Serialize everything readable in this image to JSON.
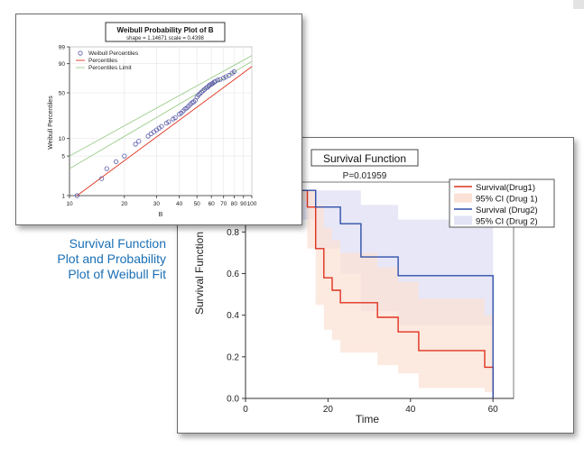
{
  "caption": {
    "line1": "Survival Function",
    "line2": "Plot and Probability",
    "line3": "Plot of Weibull Fit"
  },
  "colors": {
    "caption": "#1a6fb5",
    "drug1": "#e0321e",
    "drug1_ci": "#fbe2d6",
    "drug2": "#2f4fa8",
    "drug2_ci": "#e3e3f6",
    "weibull_points": "#5a5aa8",
    "percentiles": "#e0321e",
    "percentiles_limit": "#9ccc8a"
  },
  "chart_data": [
    {
      "type": "line",
      "title": "Survival Function",
      "subtitle": "P=0.01959",
      "xlabel": "Time",
      "ylabel": "Survival Function",
      "xlim": [
        0,
        65
      ],
      "ylim": [
        0,
        1.04
      ],
      "xticks": [
        "0",
        "20",
        "40",
        "60"
      ],
      "xtick_values": [
        0,
        20,
        40,
        60
      ],
      "yticks": [
        "0.0",
        "0.2",
        "0.4",
        "0.6",
        "0.8"
      ],
      "ytick_values": [
        0,
        0.2,
        0.4,
        0.6,
        0.8
      ],
      "legend": [
        "Survival(Drug1)",
        "95% CI (Drug 1)",
        "Survival (Drug2)",
        "95% CI (Drug 2)"
      ],
      "legend_position": "top-right",
      "series": [
        {
          "name": "Survival(Drug1)",
          "kind": "step",
          "x": [
            13,
            15,
            17,
            19,
            21,
            23,
            32,
            37,
            42,
            58,
            60
          ],
          "y": [
            1.0,
            0.92,
            0.72,
            0.58,
            0.52,
            0.46,
            0.39,
            0.32,
            0.23,
            0.15,
            0.0
          ]
        },
        {
          "name": "95% CI (Drug 1)",
          "kind": "band",
          "x": [
            13,
            15,
            17,
            19,
            21,
            23,
            32,
            37,
            42,
            58,
            60
          ],
          "lower": [
            0.95,
            0.72,
            0.45,
            0.33,
            0.28,
            0.22,
            0.16,
            0.12,
            0.05,
            0.03,
            0.0
          ],
          "upper": [
            1.0,
            1.0,
            0.93,
            0.82,
            0.76,
            0.7,
            0.63,
            0.56,
            0.48,
            0.4,
            0.4
          ]
        },
        {
          "name": "Survival (Drug2)",
          "kind": "step",
          "x": [
            13,
            17,
            23,
            28,
            37,
            60
          ],
          "y": [
            1.0,
            0.92,
            0.84,
            0.68,
            0.59,
            0.0
          ]
        },
        {
          "name": "95% CI (Drug 2)",
          "kind": "band",
          "x": [
            13,
            17,
            23,
            28,
            37,
            60
          ],
          "lower": [
            0.86,
            0.72,
            0.6,
            0.42,
            0.35,
            0.35
          ],
          "upper": [
            1.0,
            1.0,
            1.0,
            0.93,
            0.86,
            0.86
          ]
        }
      ]
    },
    {
      "type": "scatter",
      "title": "Weibull Probability Plot of B",
      "subtitle": "shape = 1.14671  scale = 0.4398",
      "xlabel": "B",
      "ylabel": "Weibull Percentiles",
      "x_scale": "log",
      "y_scale": "weibull",
      "xlim": [
        10,
        100
      ],
      "ylim": [
        1,
        99
      ],
      "xticks": [
        "10",
        "20",
        "30",
        "40",
        "50",
        "60",
        "70",
        "80",
        "90",
        "100"
      ],
      "xtick_values": [
        10,
        20,
        30,
        40,
        50,
        60,
        70,
        80,
        90,
        100
      ],
      "yticks": [
        "1",
        "5",
        "10",
        "50",
        "90",
        "99"
      ],
      "ytick_values": [
        1,
        5,
        10,
        50,
        90,
        99
      ],
      "legend": [
        "Weibull Percentiles",
        "Percentiles",
        "Percentiles Limit"
      ],
      "legend_position": "top-left",
      "series": [
        {
          "name": "Weibull Percentiles",
          "kind": "points",
          "x": [
            11,
            15,
            16,
            18,
            20,
            23,
            24,
            27,
            28,
            29,
            30,
            31,
            32,
            34,
            35,
            37,
            38,
            40,
            41,
            42,
            43,
            44,
            45,
            46,
            47,
            48,
            49,
            50,
            51,
            52,
            53,
            54,
            55,
            56,
            57,
            58,
            59,
            60,
            61,
            62,
            63,
            65,
            67,
            70,
            72,
            75,
            78,
            80
          ],
          "y": [
            1,
            2,
            3,
            4,
            5,
            8,
            9,
            11,
            12,
            13,
            14,
            15,
            16,
            18,
            19,
            21,
            22,
            25,
            26,
            28,
            30,
            31,
            33,
            35,
            37,
            38,
            40,
            44,
            47,
            49,
            51,
            53,
            55,
            57,
            58,
            60,
            62,
            63,
            64,
            66,
            67,
            69,
            70,
            72,
            74,
            76,
            79,
            81
          ]
        },
        {
          "name": "Percentiles",
          "kind": "line",
          "x": [
            11,
            100
          ],
          "y": [
            1,
            87
          ]
        },
        {
          "name": "Percentiles Limit",
          "kind": "line",
          "x": [
            10,
            100
          ],
          "y": [
            5,
            96
          ]
        },
        {
          "name": "Percentiles Limit",
          "kind": "line",
          "x": [
            10,
            100
          ],
          "y": [
            3,
            92
          ]
        }
      ]
    }
  ]
}
